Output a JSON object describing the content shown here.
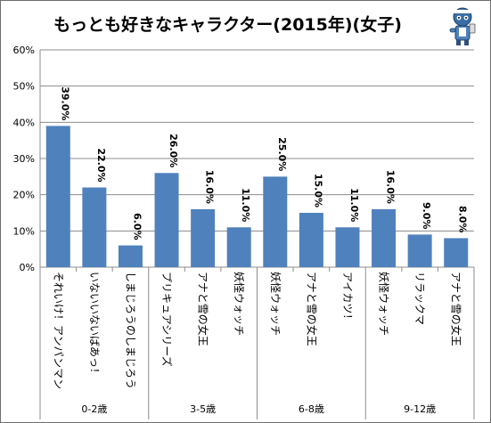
{
  "chart_data": {
    "type": "bar",
    "title": "もっとも好きなキャラクター(2015年)(女子)",
    "y_ticks": [
      "0%",
      "10%",
      "20%",
      "30%",
      "40%",
      "50%",
      "60%"
    ],
    "ylim": [
      0,
      60
    ],
    "grid": true,
    "legend": "none",
    "bar_color": "#4f81bd",
    "categories": [
      "それいけ！アンパンマン",
      "いないいないばあっ！",
      "しまじろうのしまじろう",
      "プリキュアシリーズ",
      "アナと雪の女王",
      "妖怪ウォッチ",
      "妖怪ウォッチ",
      "アナと雪の女王",
      "アイカツ！",
      "妖怪ウォッチ",
      "リラックマ",
      "アナと雪の女王"
    ],
    "values": [
      39.0,
      22.0,
      6.0,
      26.0,
      16.0,
      11.0,
      25.0,
      15.0,
      11.0,
      16.0,
      9.0,
      8.0
    ],
    "value_labels": [
      "39.0%",
      "22.0%",
      "6.0%",
      "26.0%",
      "16.0%",
      "11.0%",
      "25.0%",
      "15.0%",
      "11.0%",
      "16.0%",
      "9.0%",
      "8.0%"
    ],
    "groups": [
      {
        "label": "0-2歳",
        "count": 3
      },
      {
        "label": "3-5歳",
        "count": 3
      },
      {
        "label": "6-8歳",
        "count": 3
      },
      {
        "label": "9-12歳",
        "count": 3
      }
    ]
  }
}
